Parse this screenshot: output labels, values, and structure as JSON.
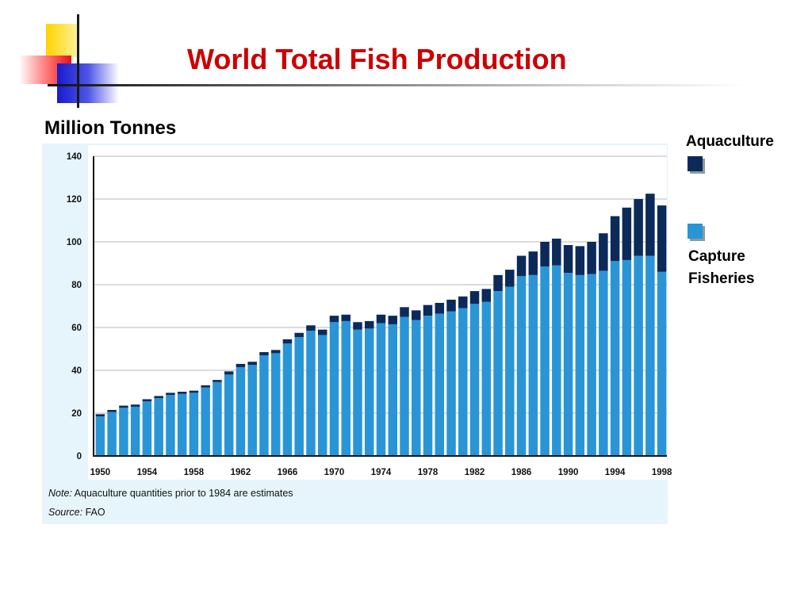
{
  "slide": {
    "title": "World Total Fish Production",
    "unit_label": "Million Tonnes"
  },
  "legend": {
    "aquaculture": "Aquaculture",
    "capture_line1": "Capture",
    "capture_line2": "Fisheries"
  },
  "colors": {
    "title": "#cc0000",
    "aquaculture": "#0b2a5a",
    "capture": "#2a95d6",
    "panel": "#e6f4fb"
  },
  "chart_data": {
    "type": "bar",
    "stacked": true,
    "x": [
      1950,
      1951,
      1952,
      1953,
      1954,
      1955,
      1956,
      1957,
      1958,
      1959,
      1960,
      1961,
      1962,
      1963,
      1964,
      1965,
      1966,
      1967,
      1968,
      1969,
      1970,
      1971,
      1972,
      1973,
      1974,
      1975,
      1976,
      1977,
      1978,
      1979,
      1980,
      1981,
      1982,
      1983,
      1984,
      1985,
      1986,
      1987,
      1988,
      1989,
      1990,
      1991,
      1992,
      1993,
      1994,
      1995,
      1996,
      1997,
      1998
    ],
    "xticks": [
      "1950",
      "1954",
      "1958",
      "1962",
      "1966",
      "1970",
      "1974",
      "1978",
      "1982",
      "1986",
      "1990",
      "1994",
      "1998"
    ],
    "yticks": [
      "0",
      "20",
      "40",
      "60",
      "80",
      "100",
      "120",
      "140"
    ],
    "ylim": [
      0,
      140
    ],
    "grid": true,
    "series": [
      {
        "name": "Capture Fisheries",
        "values": [
          18.5,
          20.5,
          22.5,
          23,
          25.5,
          27,
          28.5,
          29,
          29.5,
          32,
          34.5,
          38,
          41.5,
          42.5,
          47,
          48,
          52.5,
          55.5,
          58.5,
          56.5,
          62.5,
          63,
          59,
          59.5,
          62,
          61.5,
          65,
          63.5,
          65.5,
          66.5,
          67.5,
          69,
          71,
          72,
          77,
          79,
          84,
          84.5,
          88.5,
          89,
          85.5,
          84.5,
          85,
          86.5,
          91,
          91.5,
          93.5,
          93.5,
          86
        ]
      },
      {
        "name": "Aquaculture",
        "values": [
          1,
          1,
          1,
          1,
          1,
          1,
          1,
          1,
          1,
          1,
          1,
          1.5,
          1.5,
          1.5,
          1.5,
          1.5,
          2,
          2,
          2.5,
          2.5,
          3,
          3,
          3.5,
          3.5,
          4,
          4,
          4.5,
          4.5,
          5,
          5,
          5.5,
          5.5,
          6,
          6,
          7.5,
          8,
          9.5,
          11,
          11.5,
          12.5,
          13,
          13.5,
          15,
          17.5,
          21,
          24.5,
          26.5,
          29,
          31
        ]
      }
    ],
    "note_prefix": "Note:",
    "note_text": " Aquaculture quantities prior to 1984 are estimates",
    "source_prefix": "Source:",
    "source_text": " FAO"
  }
}
